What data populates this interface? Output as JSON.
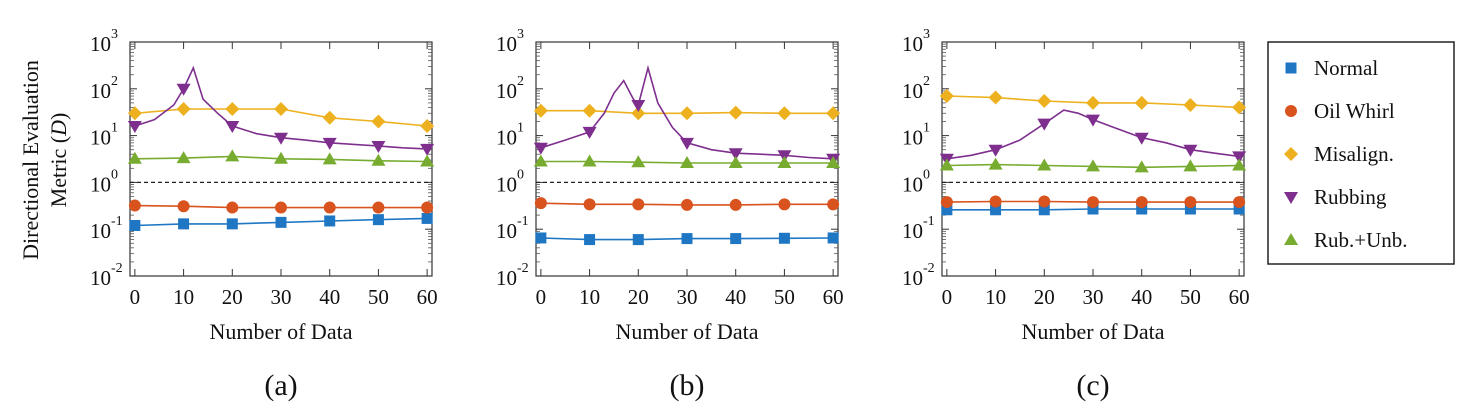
{
  "chart_data": {
    "type": "line",
    "ylabel_line1": "Directional Evaluation",
    "ylabel_line2": "Metric (",
    "ylabel_symbol": "D",
    "ylabel_close": ")",
    "xlabel": "Number of Data",
    "xlim": [
      -1,
      61
    ],
    "x_ticks": [
      "0",
      "10",
      "20",
      "30",
      "40",
      "50",
      "60"
    ],
    "y_scale": "log",
    "ylim": [
      0.01,
      1000
    ],
    "y_ticks": [
      {
        "base": "10",
        "exp": "-2"
      },
      {
        "base": "10",
        "exp": "-1"
      },
      {
        "base": "10",
        "exp": "0"
      },
      {
        "base": "10",
        "exp": "1"
      },
      {
        "base": "10",
        "exp": "2"
      },
      {
        "base": "10",
        "exp": "3"
      }
    ],
    "threshold": 1,
    "legend": {
      "placement": "right",
      "entries": [
        {
          "name": "Normal",
          "color": "#1f77c4",
          "marker": "square"
        },
        {
          "name": "Oil Whirl",
          "color": "#d9531e",
          "marker": "circle"
        },
        {
          "name": "Misalign.",
          "color": "#edb120",
          "marker": "diamond"
        },
        {
          "name": "Rubbing",
          "color": "#7e2f8e",
          "marker": "triangle-down"
        },
        {
          "name": "Rub.+Unb.",
          "color": "#77ac30",
          "marker": "triangle-up"
        }
      ]
    },
    "panels": [
      {
        "label": "(a)",
        "series": [
          {
            "name": "Normal",
            "x": [
              0,
              10,
              20,
              30,
              40,
              50,
              60
            ],
            "y": [
              0.12,
              0.13,
              0.13,
              0.14,
              0.15,
              0.16,
              0.17
            ]
          },
          {
            "name": "Oil Whirl",
            "x": [
              0,
              10,
              20,
              30,
              40,
              50,
              60
            ],
            "y": [
              0.32,
              0.31,
              0.29,
              0.29,
              0.29,
              0.29,
              0.29
            ]
          },
          {
            "name": "Misalign.",
            "x": [
              0,
              10,
              20,
              30,
              40,
              50,
              60
            ],
            "y": [
              30,
              37,
              37,
              37,
              24,
              20,
              16
            ]
          },
          {
            "name": "Rubbing",
            "x": [
              0,
              4,
              8,
              10,
              12,
              14,
              17,
              20,
              25,
              30,
              35,
              40,
              45,
              50,
              55,
              60
            ],
            "y": [
              16,
              22,
              45,
              100,
              280,
              60,
              30,
              16,
              11,
              9,
              8,
              7,
              6.5,
              6,
              5.5,
              5.2
            ]
          },
          {
            "name": "Rub.+Unb.",
            "x": [
              0,
              10,
              20,
              30,
              40,
              50,
              60
            ],
            "y": [
              3.2,
              3.3,
              3.6,
              3.2,
              3.1,
              2.9,
              2.8
            ]
          }
        ]
      },
      {
        "label": "(b)",
        "series": [
          {
            "name": "Normal",
            "x": [
              0,
              10,
              20,
              30,
              40,
              50,
              60
            ],
            "y": [
              0.065,
              0.06,
              0.06,
              0.063,
              0.063,
              0.064,
              0.065
            ]
          },
          {
            "name": "Oil Whirl",
            "x": [
              0,
              10,
              20,
              30,
              40,
              50,
              60
            ],
            "y": [
              0.36,
              0.34,
              0.34,
              0.33,
              0.33,
              0.34,
              0.34
            ]
          },
          {
            "name": "Misalign.",
            "x": [
              0,
              10,
              20,
              30,
              40,
              50,
              60
            ],
            "y": [
              34,
              34,
              30,
              30,
              31,
              30,
              30
            ]
          },
          {
            "name": "Rubbing",
            "x": [
              0,
              5,
              10,
              13,
              15,
              17,
              19,
              20,
              22,
              24,
              27,
              30,
              35,
              40,
              45,
              50,
              55,
              60
            ],
            "y": [
              5.5,
              8,
              12,
              30,
              80,
              150,
              60,
              45,
              280,
              50,
              15,
              7,
              5,
              4.2,
              4,
              3.8,
              3.4,
              3.2
            ]
          },
          {
            "name": "Rub.+Unb.",
            "x": [
              0,
              10,
              20,
              30,
              40,
              50,
              60
            ],
            "y": [
              2.8,
              2.8,
              2.7,
              2.6,
              2.6,
              2.6,
              2.6
            ]
          }
        ]
      },
      {
        "label": "(c)",
        "series": [
          {
            "name": "Normal",
            "x": [
              0,
              10,
              20,
              30,
              40,
              50,
              60
            ],
            "y": [
              0.26,
              0.26,
              0.26,
              0.27,
              0.27,
              0.27,
              0.27
            ]
          },
          {
            "name": "Oil Whirl",
            "x": [
              0,
              10,
              20,
              30,
              40,
              50,
              60
            ],
            "y": [
              0.38,
              0.39,
              0.39,
              0.38,
              0.38,
              0.38,
              0.38
            ]
          },
          {
            "name": "Misalign.",
            "x": [
              0,
              10,
              20,
              30,
              40,
              50,
              60
            ],
            "y": [
              70,
              65,
              55,
              50,
              50,
              45,
              40
            ]
          },
          {
            "name": "Rubbing",
            "x": [
              0,
              5,
              10,
              15,
              20,
              24,
              27,
              30,
              35,
              40,
              45,
              50,
              55,
              60
            ],
            "y": [
              3.2,
              3.8,
              5,
              8,
              18,
              35,
              30,
              22,
              14,
              9,
              7,
              5,
              4.2,
              3.6
            ]
          },
          {
            "name": "Rub.+Unb.",
            "x": [
              0,
              10,
              20,
              30,
              40,
              50,
              60
            ],
            "y": [
              2.3,
              2.4,
              2.3,
              2.2,
              2.1,
              2.2,
              2.3
            ]
          }
        ]
      }
    ]
  }
}
